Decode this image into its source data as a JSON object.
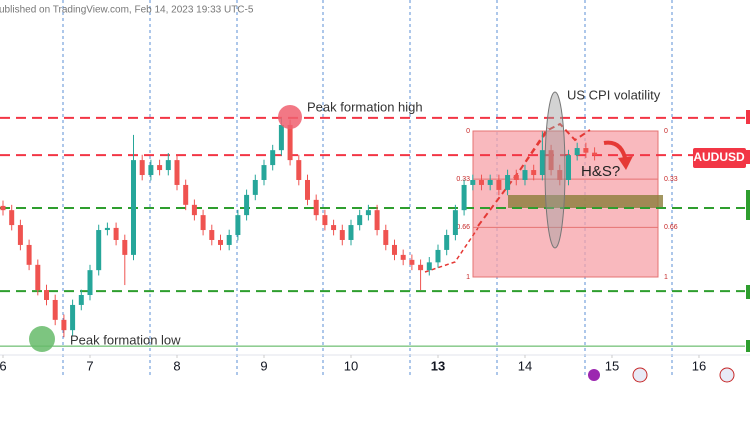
{
  "header": "ublished on TradingView.com, Feb 14, 2023 19:33 UTC-5",
  "chart_data": {
    "type": "candlestick",
    "symbol": "AUDUSD",
    "xlim": [
      -0.345,
      85.29
    ],
    "ylim": [
      0,
      100
    ],
    "xticks": [
      {
        "value": 0,
        "label": "6"
      },
      {
        "value": 10,
        "label": "7"
      },
      {
        "value": 20,
        "label": "8"
      },
      {
        "value": 30,
        "label": "9"
      },
      {
        "value": 40,
        "label": "10"
      },
      {
        "value": 50,
        "label": "13"
      },
      {
        "value": 60,
        "label": "14"
      },
      {
        "value": 70,
        "label": "15"
      },
      {
        "value": 80,
        "label": "16"
      }
    ],
    "up_color": "#26a69a",
    "down_color": "#ef5350",
    "open": [
      42,
      40.8,
      36.6,
      31.0,
      25.4,
      18.3,
      15.5,
      9.9,
      7.0,
      14.1,
      16.9,
      23.9,
      35.2,
      35.8,
      32.4,
      28.2,
      54.9,
      50.7,
      53.5,
      52.1,
      54.9,
      47.9,
      42.3,
      39.4,
      35.2,
      32.4,
      31.0,
      33.8,
      39.4,
      45.1,
      49.3,
      53.5,
      57.7,
      64.8,
      54.9,
      49.3,
      43.7,
      39.4,
      36.6,
      35.2,
      32.4,
      36.6,
      39.4,
      40.8,
      35.2,
      31.0,
      28.2,
      26.8,
      25.4,
      23.9,
      26.1,
      29.6,
      33.8,
      40.8,
      47.9,
      49.3,
      47.9,
      49.3,
      46.5,
      50.7,
      49.3,
      52.1,
      50.7,
      57.7,
      52.1,
      49.3,
      56.3,
      58.3,
      57.0
    ],
    "high": [
      43.5,
      42.3,
      38.1,
      32.5,
      26.9,
      19.8,
      17.0,
      11.4,
      15.6,
      18.4,
      25.4,
      36.7,
      37.3,
      37.3,
      33.9,
      62.0,
      56.4,
      55.0,
      55.0,
      56.9,
      56.4,
      49.4,
      43.8,
      40.9,
      36.7,
      33.9,
      35.3,
      40.9,
      46.6,
      50.8,
      55.0,
      59.2,
      66.8,
      66.3,
      56.4,
      50.8,
      45.2,
      40.9,
      38.1,
      36.7,
      38.1,
      40.9,
      42.3,
      42.3,
      36.7,
      32.5,
      29.7,
      28.3,
      26.9,
      27.6,
      31.1,
      35.3,
      42.3,
      49.4,
      50.8,
      50.8,
      50.8,
      50.8,
      52.2,
      52.2,
      53.6,
      53.6,
      63.0,
      59.2,
      53.6,
      57.8,
      59.8,
      59.8,
      58.5
    ],
    "low": [
      39.3,
      35.1,
      29.5,
      23.9,
      16.8,
      14.0,
      8.4,
      5.0,
      5.5,
      12.6,
      15.4,
      22.4,
      33.7,
      30.9,
      19.7,
      26.7,
      49.2,
      49.2,
      50.6,
      50.6,
      46.4,
      40.8,
      37.9,
      33.7,
      30.9,
      29.5,
      29.5,
      32.3,
      37.9,
      43.6,
      47.8,
      52.0,
      56.2,
      53.4,
      47.8,
      42.2,
      37.9,
      35.1,
      33.7,
      30.9,
      30.9,
      35.1,
      37.9,
      33.7,
      29.5,
      26.7,
      25.3,
      23.9,
      18.3,
      22.4,
      24.6,
      28.1,
      32.3,
      39.3,
      46.4,
      46.4,
      46.4,
      45.0,
      45.0,
      47.8,
      47.8,
      49.2,
      49.2,
      50.6,
      47.8,
      47.8,
      54.8,
      55.5,
      54.8
    ],
    "close": [
      40.8,
      36.6,
      31.0,
      25.4,
      18.3,
      15.5,
      9.9,
      7.0,
      14.1,
      16.9,
      23.9,
      35.2,
      35.8,
      32.4,
      28.2,
      54.9,
      50.7,
      53.5,
      52.1,
      54.9,
      47.9,
      42.3,
      39.4,
      35.2,
      32.4,
      31.0,
      33.8,
      39.4,
      45.1,
      49.3,
      53.5,
      57.7,
      64.8,
      54.9,
      49.3,
      43.7,
      39.4,
      36.6,
      35.2,
      32.4,
      36.6,
      39.4,
      40.8,
      35.2,
      31.0,
      28.2,
      26.8,
      25.4,
      23.9,
      26.1,
      29.6,
      33.8,
      40.8,
      47.9,
      49.3,
      47.9,
      49.3,
      46.5,
      50.7,
      49.3,
      52.1,
      50.7,
      57.7,
      52.1,
      49.3,
      56.3,
      58.3,
      57.0,
      56.3
    ],
    "levels": [
      {
        "value": 66.8,
        "color": "#f23645",
        "style": "dashed"
      },
      {
        "value": 56.3,
        "color": "#f23645",
        "style": "dashed"
      },
      {
        "value": 41.4,
        "color": "#2e9e2e",
        "style": "dashed"
      },
      {
        "value": 18.0,
        "color": "#2e9e2e",
        "style": "dashed"
      },
      {
        "value": 2.5,
        "color": "#4caf50",
        "style": "solid"
      }
    ],
    "fib_levels": [
      0,
      0.33,
      0.66,
      1
    ],
    "annotations": [
      "Peak formation high",
      "Peak formation low",
      "US CPI volatility",
      "H&S?"
    ]
  }
}
